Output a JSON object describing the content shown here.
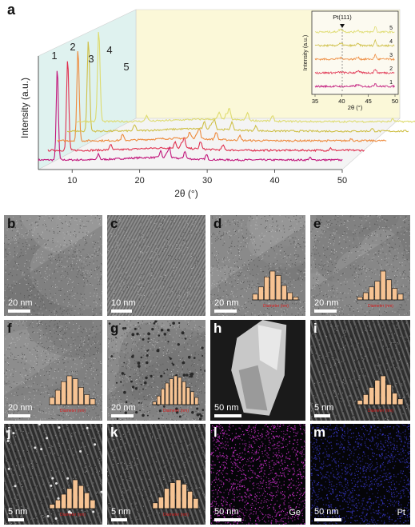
{
  "panel_a": {
    "letter": "a",
    "ylabel": "Intensity (a.u.)",
    "xlabel": "2θ (°)",
    "xticks": [
      "10",
      "20",
      "30",
      "40",
      "50"
    ],
    "curve_labels": [
      "1",
      "2",
      "3",
      "4",
      "5"
    ],
    "colors": [
      "#c2187c",
      "#e0304f",
      "#ee8a3c",
      "#cfc048",
      "#dedb6e"
    ],
    "inset": {
      "title": "Pt(111)",
      "ylabel": "Intensity (a.u.)",
      "xlabel": "2θ (°)",
      "xticks": [
        "35",
        "40",
        "45",
        "50"
      ],
      "labels": [
        "5",
        "4",
        "3",
        "2",
        "1"
      ]
    }
  },
  "chart_data": {
    "type": "line",
    "title": "",
    "xlabel": "2θ (°)",
    "ylabel": "Intensity (a.u.)",
    "xlim": [
      5,
      50
    ],
    "series": [
      {
        "name": "1",
        "peaks_2theta": [
          7.8,
          13.9,
          23.1,
          24.0,
          24.4,
          26.7,
          29.9,
          45.2
        ]
      },
      {
        "name": "2",
        "peaks_2theta": [
          7.8,
          13.9,
          23.1,
          24.0,
          24.4,
          26.7,
          29.9,
          45.2
        ]
      },
      {
        "name": "3",
        "peaks_2theta": [
          7.8,
          13.9,
          23.1,
          24.0,
          24.4,
          26.7,
          29.9,
          45.2
        ]
      },
      {
        "name": "4",
        "peaks_2theta": [
          7.8,
          13.9,
          23.1,
          24.0,
          24.4,
          26.7,
          29.9,
          45.2
        ]
      },
      {
        "name": "5",
        "peaks_2theta": [
          7.8,
          13.9,
          23.1,
          24.0,
          24.4,
          26.7,
          29.9,
          45.2
        ]
      }
    ]
  },
  "panels": [
    {
      "letter": "b",
      "scale": "20 nm",
      "type": "tem",
      "letter_color": "#111111",
      "text_color": "#ffffff",
      "hist": null
    },
    {
      "letter": "c",
      "scale": "10 nm",
      "type": "fringes",
      "letter_color": "#111111",
      "text_color": "#ffffff",
      "hist": null
    },
    {
      "letter": "d",
      "scale": "20 nm",
      "type": "tem",
      "letter_color": "#111111",
      "text_color": "#ffffff",
      "hist": {
        "values": [
          0.2,
          0.45,
          0.8,
          1.0,
          0.85,
          0.5,
          0.25,
          0.1
        ],
        "xlabel": "Diameter (nm)"
      }
    },
    {
      "letter": "e",
      "scale": "20 nm",
      "type": "tem",
      "letter_color": "#111111",
      "text_color": "#ffffff",
      "hist": {
        "values": [
          0.1,
          0.25,
          0.45,
          0.65,
          1.0,
          0.7,
          0.4,
          0.2
        ],
        "xlabel": "Diameter (nm)"
      }
    },
    {
      "letter": "f",
      "scale": "20 nm",
      "type": "tem",
      "letter_color": "#111111",
      "text_color": "#ffffff",
      "hist": {
        "values": [
          0.25,
          0.5,
          0.8,
          1.0,
          0.9,
          0.6,
          0.35,
          0.2
        ],
        "xlabel": "Diameter (nm)"
      }
    },
    {
      "letter": "g",
      "scale": "20 nm",
      "type": "dots",
      "letter_color": "#111111",
      "text_color": "#ffffff",
      "hist": {
        "values": [
          0.1,
          0.3,
          0.55,
          0.75,
          0.9,
          1.0,
          0.95,
          0.8,
          0.6,
          0.45,
          0.25
        ],
        "xlabel": "Diameter (nm)"
      }
    },
    {
      "letter": "h",
      "scale": "50 nm",
      "type": "haadf",
      "letter_color": "#ffffff",
      "text_color": "#ffffff",
      "hist": null
    },
    {
      "letter": "i",
      "scale": "5 nm",
      "type": "stem",
      "letter_color": "#ffffff",
      "text_color": "#ffffff",
      "hist": {
        "values": [
          0.15,
          0.35,
          0.6,
          0.85,
          1.0,
          0.7,
          0.4,
          0.2
        ],
        "xlabel": "Diameter (nm)"
      }
    },
    {
      "letter": "j",
      "scale": "5 nm",
      "type": "stem",
      "letter_color": "#ffffff",
      "text_color": "#ffffff",
      "hist": {
        "values": [
          0.15,
          0.3,
          0.5,
          0.7,
          1.0,
          0.8,
          0.55,
          0.3
        ],
        "xlabel": "Diameter (nm)"
      }
    },
    {
      "letter": "k",
      "scale": "5 nm",
      "type": "stem",
      "letter_color": "#ffffff",
      "text_color": "#ffffff",
      "hist": {
        "values": [
          0.2,
          0.4,
          0.7,
          0.9,
          1.0,
          0.85,
          0.6,
          0.35
        ],
        "xlabel": "Diameter (nm)"
      }
    },
    {
      "letter": "l",
      "scale": "50 nm",
      "type": "map",
      "map_color": "#d633d6",
      "element": "Ge",
      "letter_color": "#ffffff",
      "text_color": "#ffffff",
      "hist": null
    },
    {
      "letter": "m",
      "scale": "50 nm",
      "type": "map",
      "map_color": "#3a3acf",
      "element": "Pt",
      "letter_color": "#ffffff",
      "text_color": "#ffffff",
      "hist": null
    }
  ]
}
